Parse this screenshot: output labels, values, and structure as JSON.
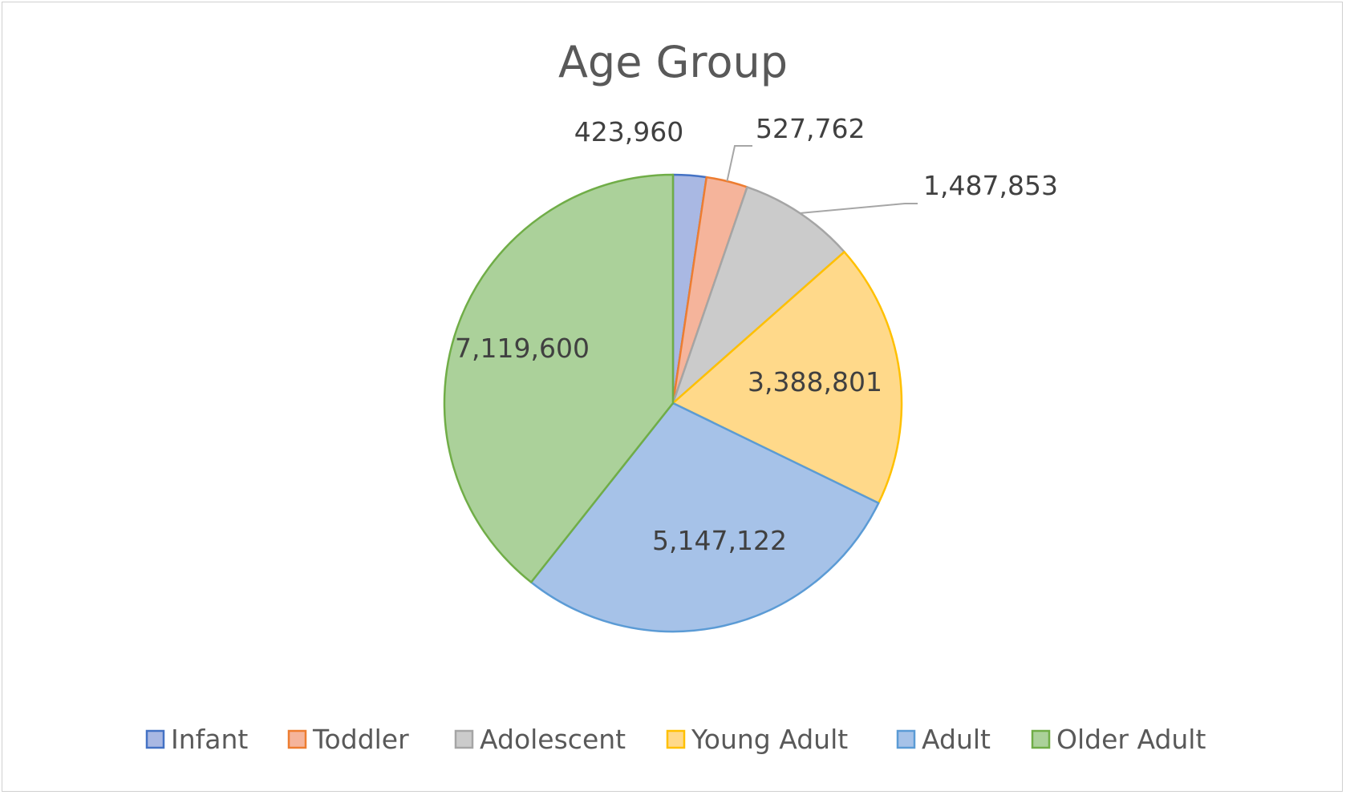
{
  "chart_data": {
    "type": "pie",
    "title": "Age Group",
    "legend_position": "bottom",
    "categories": [
      "Infant",
      "Toddler",
      "Adolescent",
      "Young Adult",
      "Adult",
      "Older Adult"
    ],
    "values": [
      423960,
      527762,
      1487853,
      3388801,
      5147122,
      7119600
    ],
    "value_labels": [
      "423,960",
      "527,762",
      "1,487,853",
      "3,388,801",
      "5,147,122",
      "7,119,600"
    ],
    "fill_colors": [
      "#a9b8e3",
      "#f5b49b",
      "#cbcbcb",
      "#ffd98a",
      "#a6c2e8",
      "#abd19a"
    ],
    "stroke_colors": [
      "#4472c4",
      "#ed7d31",
      "#a5a5a5",
      "#ffc000",
      "#5b9bd5",
      "#70ad47"
    ]
  }
}
